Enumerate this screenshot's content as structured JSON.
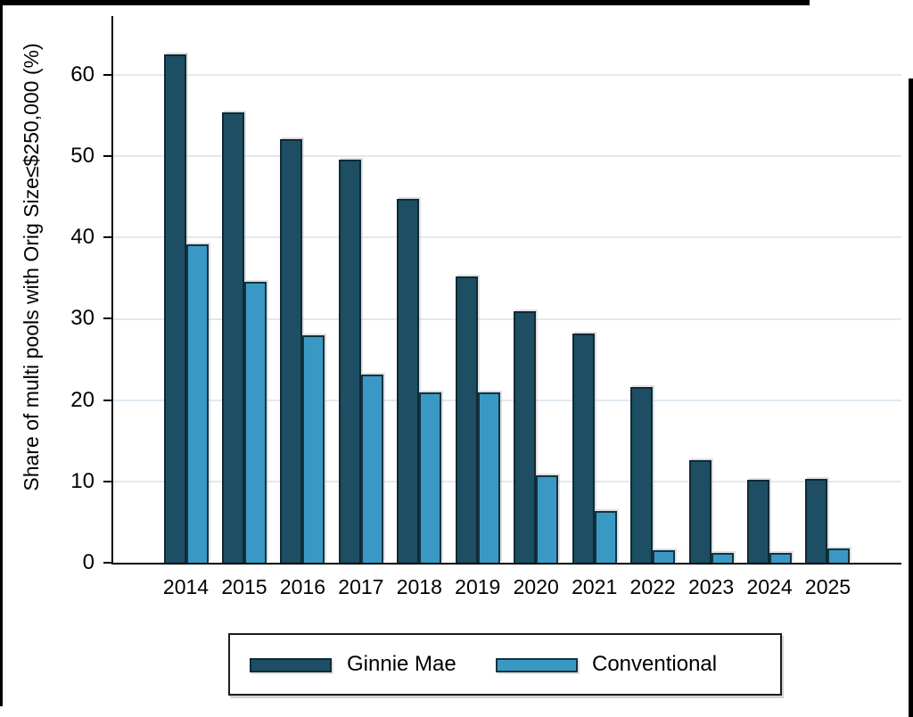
{
  "figure": {
    "background": "#ffffff",
    "frame_color": "#000000"
  },
  "chart_data": {
    "type": "bar",
    "title": "",
    "xlabel": "",
    "ylabel": "Share of multi pools with Orig Size≤$250,000 (%)",
    "categories": [
      "2014",
      "2015",
      "2016",
      "2017",
      "2018",
      "2019",
      "2020",
      "2021",
      "2022",
      "2023",
      "2024",
      "2025"
    ],
    "series": [
      {
        "name": "Ginnie Mae",
        "color": "#1d4e63",
        "outline": "#0e2a36",
        "values": [
          62.5,
          55.4,
          52.1,
          49.6,
          44.7,
          35.2,
          30.9,
          28.2,
          21.6,
          12.6,
          10.2,
          10.3
        ]
      },
      {
        "name": "Conventional",
        "color": "#3999c4",
        "outline": "#15323f",
        "values": [
          39.2,
          34.6,
          28.0,
          23.1,
          20.9,
          20.9,
          10.7,
          6.4,
          1.5,
          1.2,
          1.2,
          1.8
        ]
      }
    ],
    "ylim": [
      0,
      67
    ],
    "yticks": [
      0,
      10,
      20,
      30,
      40,
      50,
      60
    ],
    "grid": true,
    "gridline_color": "#dfeaf2",
    "axis_color": "#000000",
    "legend_position": "bottom"
  }
}
